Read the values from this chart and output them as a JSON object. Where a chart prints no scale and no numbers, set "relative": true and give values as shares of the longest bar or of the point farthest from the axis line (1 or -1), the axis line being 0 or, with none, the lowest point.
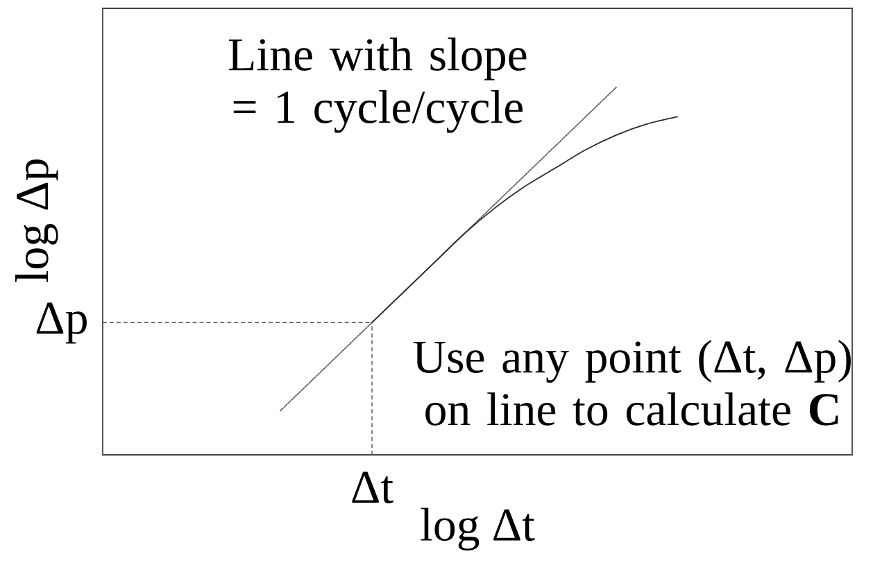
{
  "chart_data": {
    "type": "line",
    "relative": true,
    "xlabel": "log Δt",
    "ylabel": "log Δp",
    "categories": [
      null,
      null,
      null,
      null,
      null,
      null,
      null,
      null,
      null,
      null,
      null,
      null,
      null,
      null,
      null,
      null,
      null,
      null,
      null,
      null,
      null,
      null,
      null,
      null
    ],
    "series": [
      {
        "color": "#5a5a5a",
        "line_style": "dotted",
        "values": [
          null,
          null,
          null,
          null,
          null,
          0.12,
          0.2,
          0.28,
          0.36,
          0.44,
          0.52,
          0.6,
          0.68,
          0.76,
          0.84,
          0.92,
          1.0,
          null,
          null,
          null,
          null,
          null,
          null,
          null
        ]
      },
      {
        "color": "#2b2b2b",
        "line_style": "solid",
        "values": [
          null,
          null,
          null,
          null,
          null,
          null,
          null,
          null,
          0.36,
          0.44,
          0.52,
          0.6,
          0.67,
          0.73,
          0.78,
          0.83,
          0.87,
          0.9,
          0.92,
          null,
          null,
          null,
          null,
          null
        ]
      }
    ],
    "ref_lines": [
      {
        "axis": "y",
        "value": 0.36,
        "label": "Δp",
        "color": "#555555",
        "line_style": "dashed"
      },
      {
        "axis": "x",
        "value": "Δt",
        "color": "#555555",
        "line_style": "dashed"
      }
    ],
    "annotations": [
      "Line with slope = 1 cycle/cycle",
      "Use any point (Δt, Δp) on line to calculate **C**"
    ]
  }
}
